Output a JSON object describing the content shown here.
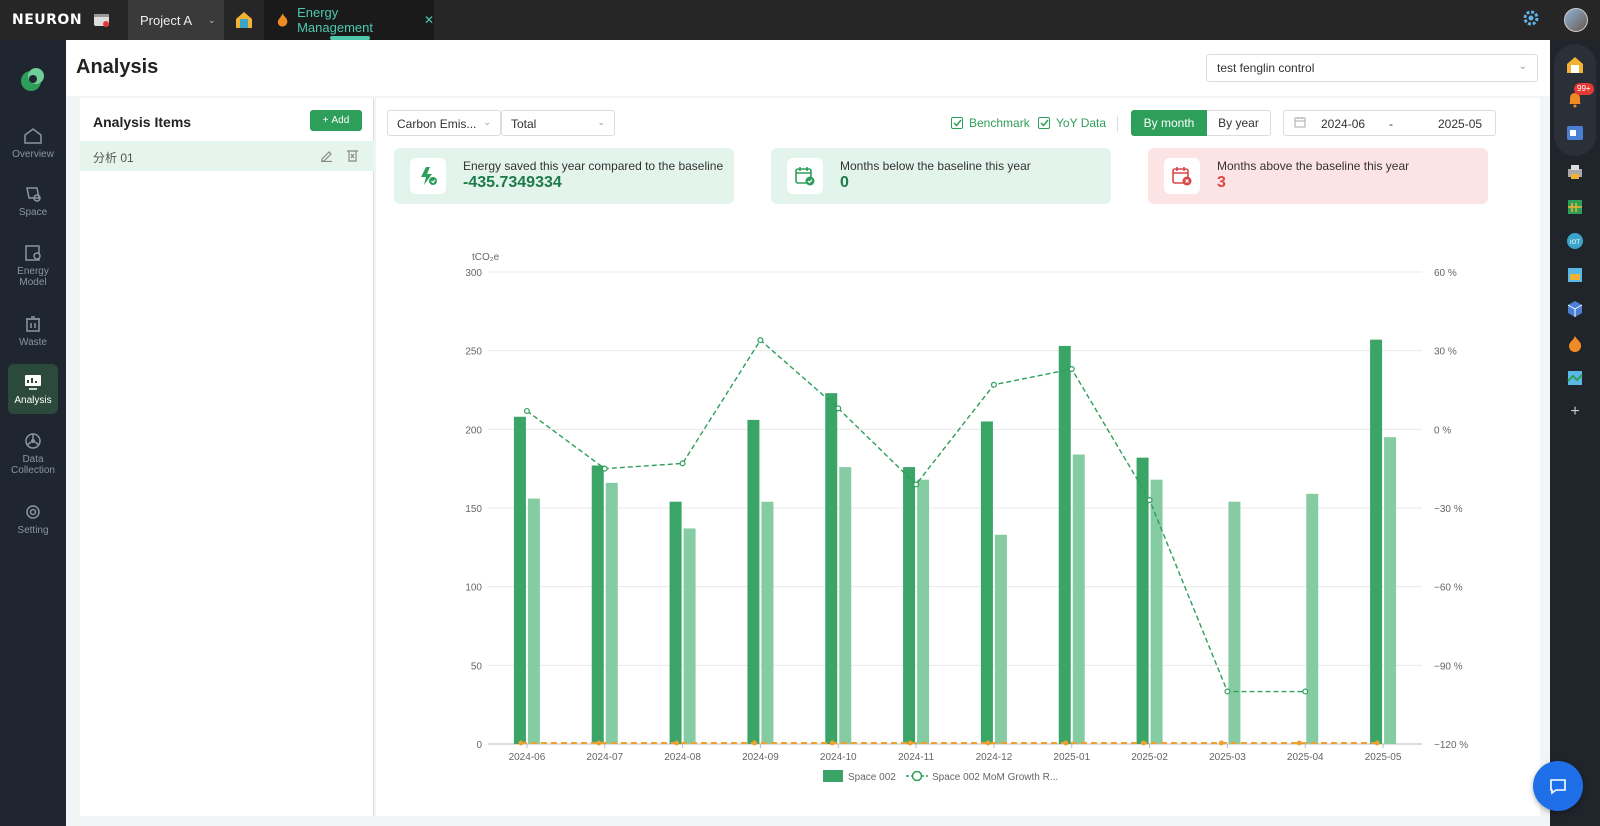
{
  "topbar": {
    "logo": "NEURON",
    "project": "Project A",
    "active_tab": "Energy Management"
  },
  "leftnav": {
    "items": [
      {
        "label": "Overview",
        "icon": "home-icon"
      },
      {
        "label": "Space",
        "icon": "space-icon"
      },
      {
        "label": "Energy Model",
        "icon": "energy-model-icon"
      },
      {
        "label": "Waste",
        "icon": "waste-icon"
      },
      {
        "label": "Analysis",
        "icon": "analysis-icon",
        "active": true
      },
      {
        "label": "Data Collection",
        "icon": "data-collection-icon"
      },
      {
        "label": "Setting",
        "icon": "setting-icon"
      }
    ]
  },
  "rightnav": {
    "notification_badge": "99+"
  },
  "page": {
    "title": "Analysis",
    "space_select": "test fenglin control"
  },
  "analysis_items": {
    "title": "Analysis Items",
    "add_label": "Add",
    "items": [
      {
        "label": "分析 01"
      }
    ]
  },
  "filters": {
    "metric": "Carbon Emis...",
    "scope": "Total",
    "benchmark_label": "Benchmark",
    "yoy_label": "YoY Data",
    "by_month": "By month",
    "by_year": "By year",
    "date_start": "2024-06",
    "date_sep": "-",
    "date_end": "2025-05"
  },
  "cards": [
    {
      "label": "Energy saved this year compared to the baseline",
      "value": "-435.7349334",
      "tone": "green"
    },
    {
      "label": "Months below the baseline this year",
      "value": "0",
      "tone": "green"
    },
    {
      "label": "Months above the baseline this year",
      "value": "3",
      "tone": "red"
    }
  ],
  "colors": {
    "accent": "#2e9e5b",
    "bar_primary": "#3aa566",
    "bar_light": "#86cca3",
    "baseline": "#f0a030",
    "danger": "#d94848"
  },
  "chart_data": {
    "type": "bar",
    "ylabel": "tCO₂e",
    "ylim": [
      0,
      300
    ],
    "yticks": [
      0,
      50,
      100,
      150,
      200,
      250,
      300
    ],
    "y2lim": [
      -120,
      60
    ],
    "y2ticks": [
      "−120 %",
      "−90 %",
      "−60 %",
      "−30 %",
      "0 %",
      "30 %",
      "60 %"
    ],
    "categories": [
      "2024‑06",
      "2024‑07",
      "2024‑08",
      "2024‑09",
      "2024‑10",
      "2024‑11",
      "2024‑12",
      "2025‑01",
      "2025‑02",
      "2025‑03",
      "2025‑04",
      "2025‑05"
    ],
    "series": [
      {
        "name": "Space 002",
        "kind": "bar",
        "values": [
          208,
          177,
          154,
          206,
          223,
          176,
          205,
          253,
          182,
          null,
          null,
          257
        ]
      },
      {
        "kind": "bar-light",
        "values": [
          156,
          166,
          137,
          154,
          176,
          168,
          133,
          184,
          168,
          154,
          159,
          195
        ]
      },
      {
        "name": "Space 002 MoM Growth R...",
        "kind": "line",
        "axis": "y2",
        "values": [
          7,
          -15,
          -13,
          34,
          8,
          -21,
          17,
          23,
          -27,
          -100,
          -100,
          null
        ]
      },
      {
        "kind": "baseline",
        "values": [
          0,
          0,
          0,
          0,
          0,
          0,
          0,
          0,
          0,
          0,
          0,
          0
        ]
      }
    ],
    "legend": "bottom-center",
    "grid": true
  }
}
